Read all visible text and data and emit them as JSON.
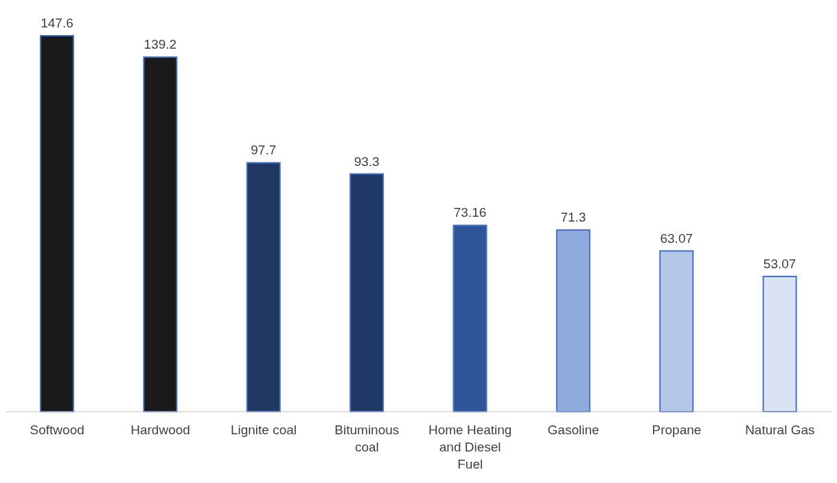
{
  "chart_data": {
    "type": "bar",
    "categories": [
      "Softwood",
      "Hardwood",
      "Lignite coal",
      "Bituminous coal",
      "Home Heating and Diesel Fuel",
      "Gasoline",
      "Propane",
      "Natural Gas"
    ],
    "values": [
      147.6,
      139.2,
      97.7,
      93.3,
      73.16,
      71.3,
      63.07,
      53.07
    ],
    "colors": [
      "#1a1a1a",
      "#1a1a1a",
      "#203864",
      "#203864",
      "#2f5597",
      "#8faadc",
      "#b4c7e7",
      "#dae3f3"
    ],
    "data_labels": true,
    "grid": false,
    "legend": false
  }
}
